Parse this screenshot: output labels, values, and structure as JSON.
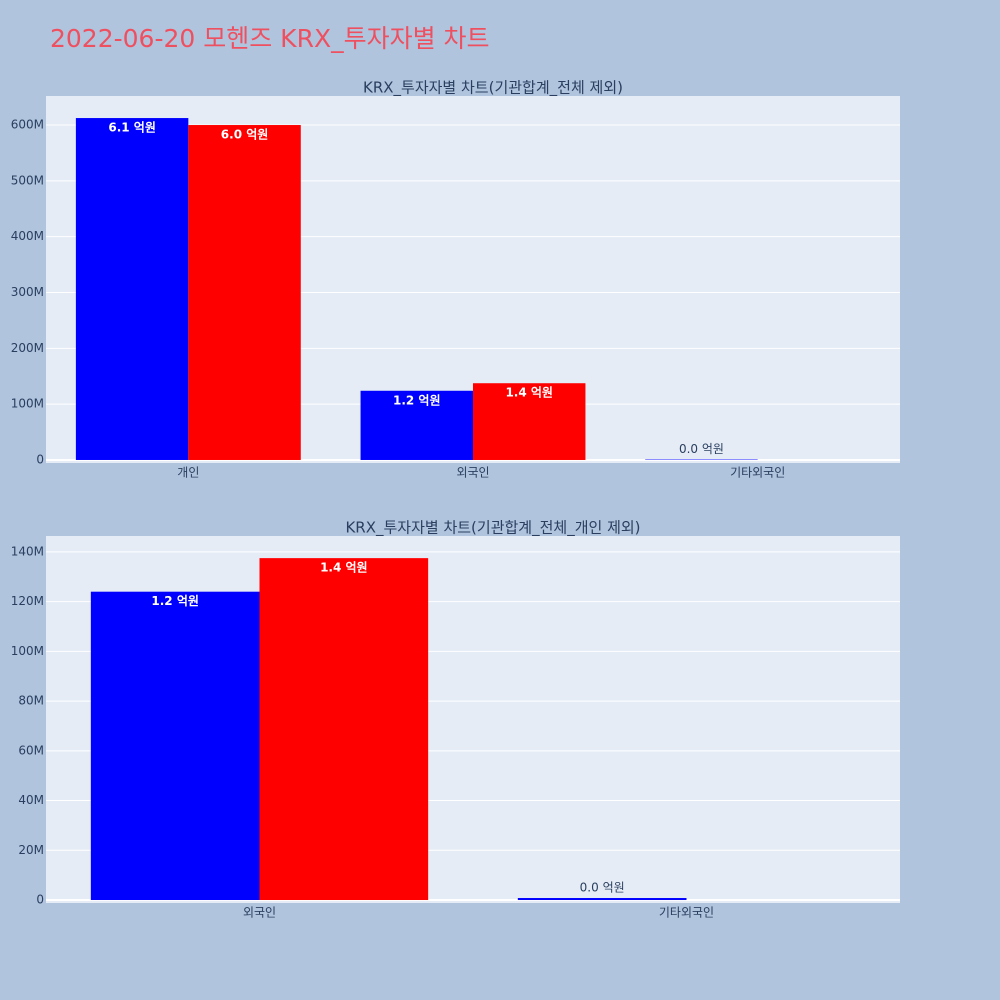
{
  "title": "2022-06-20 모헨즈 KRX_투자자별 차트",
  "chart_data": [
    {
      "type": "bar",
      "title": "KRX_투자자별 차트(기관합계_전체 제외)",
      "categories": [
        "개인",
        "외국인",
        "기타외국인"
      ],
      "series": [
        {
          "color": "#0000ff",
          "values": [
            612500000,
            124000000,
            800000
          ],
          "value_labels": [
            "6.1 억원",
            "1.2 억원",
            "0.0 억원"
          ]
        },
        {
          "color": "#ff0000",
          "values": [
            600000000,
            137500000,
            null
          ],
          "value_labels": [
            "6.0 억원",
            "1.4 억원",
            null
          ]
        }
      ],
      "ylim": [
        -5400000,
        652000000
      ],
      "yticks": [
        0,
        {
          "value": 100000000,
          "label": "100M"
        },
        {
          "value": 200000000,
          "label": "200M"
        },
        {
          "value": 300000000,
          "label": "300M"
        },
        {
          "value": 400000000,
          "label": "400M"
        },
        {
          "value": 500000000,
          "label": "500M"
        },
        {
          "value": 600000000,
          "label": "600M"
        }
      ],
      "grid": true
    },
    {
      "type": "bar",
      "title": "KRX_투자자별 차트(기관합계_전체_개인 제외)",
      "categories": [
        "외국인",
        "기타외국인"
      ],
      "series": [
        {
          "color": "#0000ff",
          "values": [
            124000000,
            800000
          ],
          "value_labels": [
            "1.2 억원",
            "0.0 억원"
          ]
        },
        {
          "color": "#ff0000",
          "values": [
            137500000,
            null
          ],
          "value_labels": [
            "1.4 억원",
            null
          ]
        }
      ],
      "ylim": [
        -1200000,
        146400000
      ],
      "yticks": [
        0,
        {
          "value": 20000000,
          "label": "20M"
        },
        {
          "value": 40000000,
          "label": "40M"
        },
        {
          "value": 60000000,
          "label": "60M"
        },
        {
          "value": 80000000,
          "label": "80M"
        },
        {
          "value": 100000000,
          "label": "100M"
        },
        {
          "value": 120000000,
          "label": "120M"
        },
        {
          "value": 140000000,
          "label": "140M"
        }
      ],
      "grid": true
    }
  ]
}
